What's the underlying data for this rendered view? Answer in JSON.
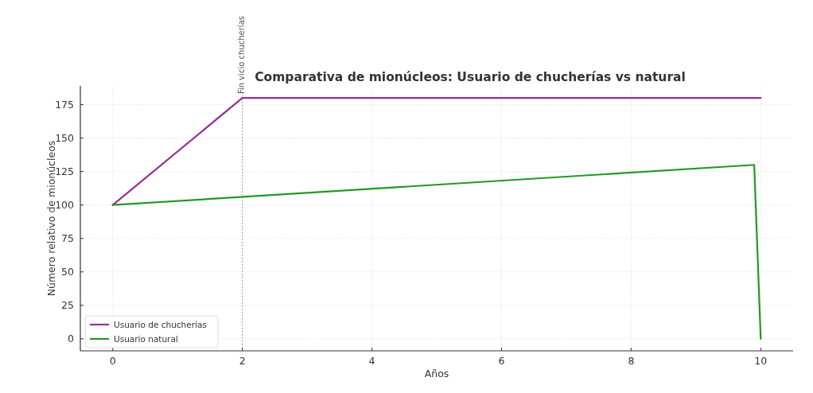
{
  "chart_data": {
    "type": "line",
    "title": "Comparativa de mionúcleos: Usuario de chucherías vs natural",
    "xlabel": "Años",
    "ylabel": "Número relativo de mionúcleos",
    "series": [
      {
        "name": "Usuario de chucherías",
        "color": "#952d98",
        "x": [
          0,
          2,
          10
        ],
        "values": [
          100,
          180,
          180
        ]
      },
      {
        "name": "Usuario natural",
        "color": "#229922",
        "x": [
          0,
          9.9,
          10
        ],
        "values": [
          100,
          130,
          0
        ]
      }
    ],
    "xlim": [
      -0.5,
      10.5
    ],
    "xticks": [
      0,
      2,
      4,
      6,
      8,
      10
    ],
    "ylim": [
      -9,
      189
    ],
    "yticks": [
      0,
      25,
      50,
      75,
      100,
      125,
      150,
      175
    ],
    "ref_lines": [
      {
        "axis": "x",
        "value": 2,
        "label": "Fin vicio chucherías",
        "color": "#888888",
        "line_style": "dotted"
      }
    ],
    "grid": true,
    "legend": "bottom left",
    "line_style": "solid"
  }
}
